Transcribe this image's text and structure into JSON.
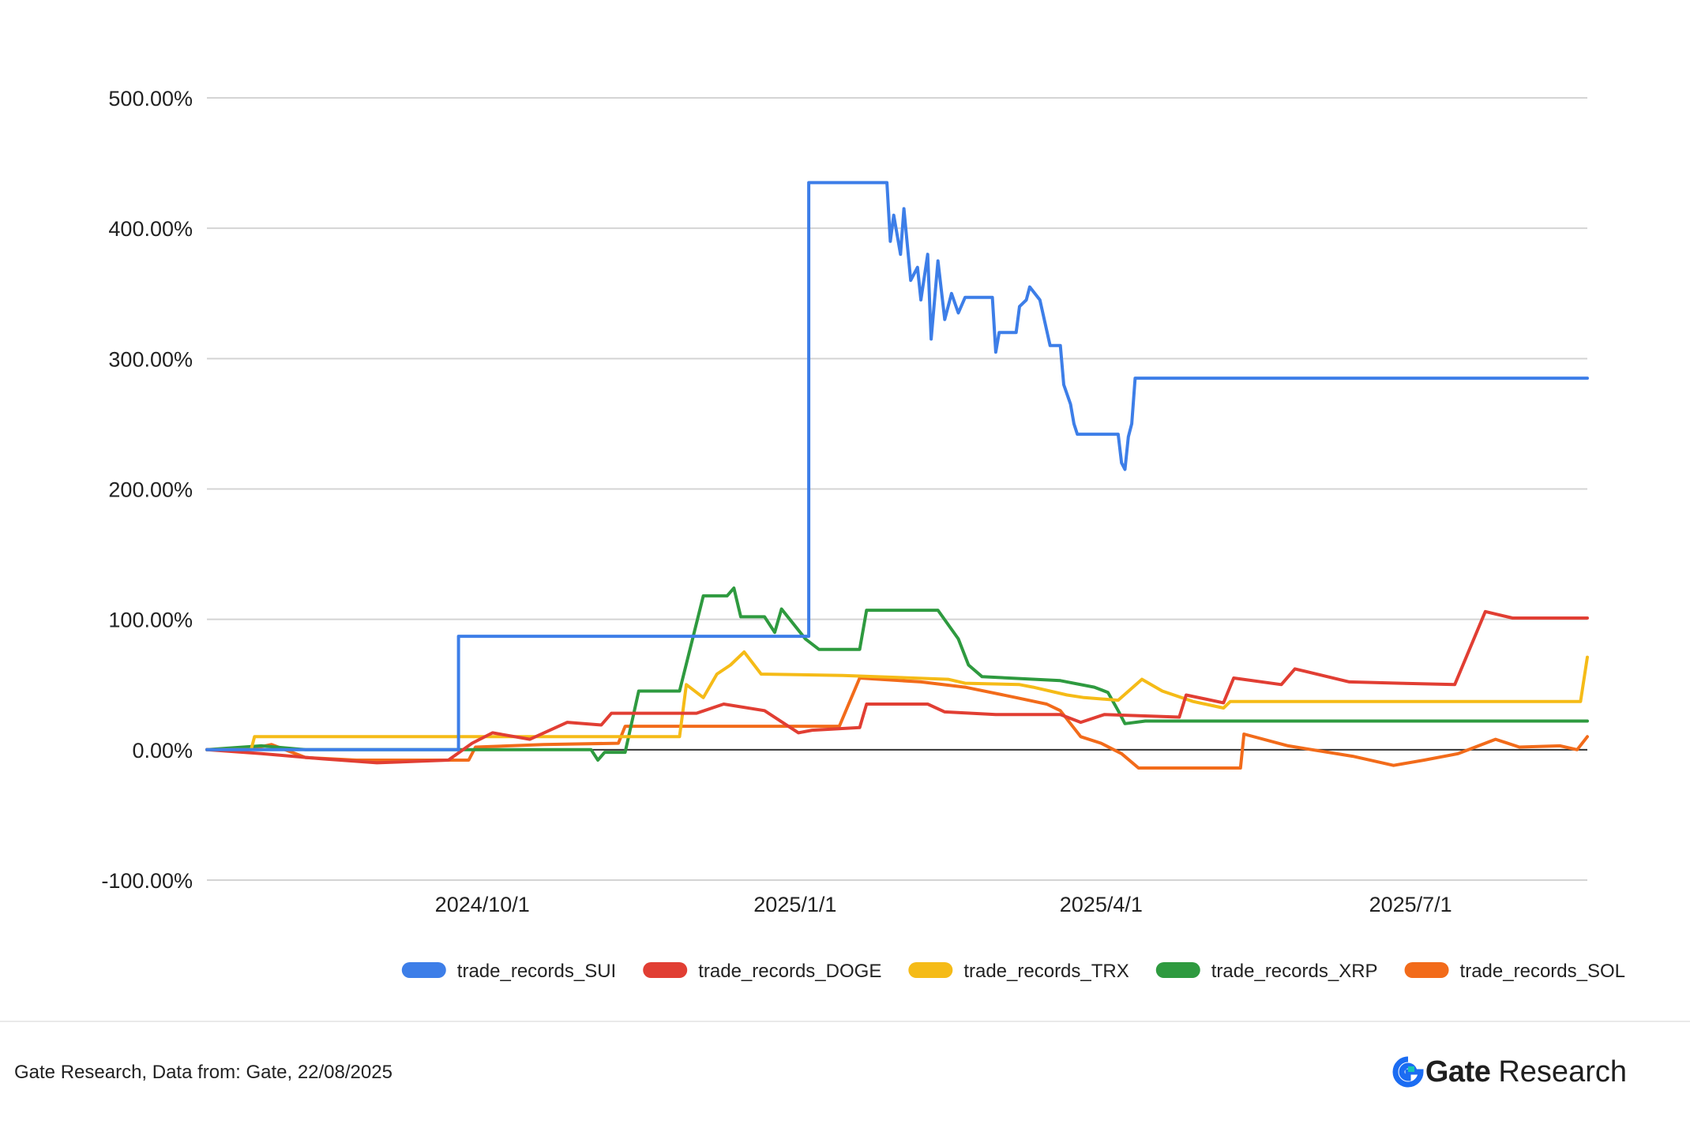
{
  "footer": {
    "source": "Gate Research, Data from: Gate, 22/08/2025",
    "brand_name": "Gate",
    "brand_suffix": "Research"
  },
  "chart_data": {
    "type": "line",
    "title": "",
    "xlabel": "",
    "ylabel": "",
    "ylim": [
      -100,
      500
    ],
    "xlim": [
      "2024-07-12",
      "2025-08-22"
    ],
    "yticks": [
      "500.00%",
      "400.00%",
      "300.00%",
      "200.00%",
      "100.00%",
      "0.00%",
      "-100.00%"
    ],
    "ytick_values": [
      500,
      400,
      300,
      200,
      100,
      0,
      -100
    ],
    "xticks": [
      "2024/10/1",
      "2025/1/1",
      "2025/4/1",
      "2025/7/1"
    ],
    "xtick_dates": [
      "2024-10-01",
      "2025-01-01",
      "2025-04-01",
      "2025-07-01"
    ],
    "grid": true,
    "legend": "bottom",
    "series": [
      {
        "name": "trade_records_SUI",
        "color": "#3d7ee8",
        "points": [
          [
            "2024-07-12",
            0
          ],
          [
            "2024-09-24",
            0
          ],
          [
            "2024-09-24",
            87
          ],
          [
            "2025-01-05",
            87
          ],
          [
            "2025-01-05",
            435
          ],
          [
            "2025-01-28",
            435
          ],
          [
            "2025-01-29",
            390
          ],
          [
            "2025-01-30",
            410
          ],
          [
            "2025-02-01",
            380
          ],
          [
            "2025-02-02",
            415
          ],
          [
            "2025-02-04",
            360
          ],
          [
            "2025-02-06",
            370
          ],
          [
            "2025-02-07",
            345
          ],
          [
            "2025-02-09",
            380
          ],
          [
            "2025-02-10",
            315
          ],
          [
            "2025-02-12",
            375
          ],
          [
            "2025-02-14",
            330
          ],
          [
            "2025-02-16",
            350
          ],
          [
            "2025-02-18",
            335
          ],
          [
            "2025-02-20",
            347
          ],
          [
            "2025-02-28",
            347
          ],
          [
            "2025-03-01",
            305
          ],
          [
            "2025-03-02",
            320
          ],
          [
            "2025-03-07",
            320
          ],
          [
            "2025-03-08",
            340
          ],
          [
            "2025-03-10",
            345
          ],
          [
            "2025-03-11",
            355
          ],
          [
            "2025-03-14",
            345
          ],
          [
            "2025-03-17",
            310
          ],
          [
            "2025-03-18",
            310
          ],
          [
            "2025-03-20",
            310
          ],
          [
            "2025-03-21",
            280
          ],
          [
            "2025-03-23",
            265
          ],
          [
            "2025-03-24",
            250
          ],
          [
            "2025-03-25",
            242
          ],
          [
            "2025-04-06",
            242
          ],
          [
            "2025-04-07",
            220
          ],
          [
            "2025-04-08",
            215
          ],
          [
            "2025-04-09",
            240
          ],
          [
            "2025-04-10",
            250
          ],
          [
            "2025-04-11",
            285
          ],
          [
            "2025-08-22",
            285
          ]
        ]
      },
      {
        "name": "trade_records_DOGE",
        "color": "#e13e33",
        "points": [
          [
            "2024-07-12",
            0
          ],
          [
            "2024-07-28",
            -3
          ],
          [
            "2024-08-15",
            -7
          ],
          [
            "2024-08-31",
            -10
          ],
          [
            "2024-09-21",
            -8
          ],
          [
            "2024-09-28",
            5
          ],
          [
            "2024-10-04",
            13
          ],
          [
            "2024-10-15",
            8
          ],
          [
            "2024-10-26",
            21
          ],
          [
            "2024-11-05",
            19
          ],
          [
            "2024-11-08",
            28
          ],
          [
            "2024-12-03",
            28
          ],
          [
            "2024-12-11",
            35
          ],
          [
            "2024-12-23",
            30
          ],
          [
            "2025-01-02",
            13
          ],
          [
            "2025-01-06",
            15
          ],
          [
            "2025-01-20",
            17
          ],
          [
            "2025-01-22",
            35
          ],
          [
            "2025-02-09",
            35
          ],
          [
            "2025-02-14",
            29
          ],
          [
            "2025-03-01",
            27
          ],
          [
            "2025-03-20",
            27
          ],
          [
            "2025-03-26",
            21
          ],
          [
            "2025-04-02",
            27
          ],
          [
            "2025-04-24",
            25
          ],
          [
            "2025-04-26",
            42
          ],
          [
            "2025-05-07",
            36
          ],
          [
            "2025-05-10",
            55
          ],
          [
            "2025-05-24",
            50
          ],
          [
            "2025-05-28",
            62
          ],
          [
            "2025-06-13",
            52
          ],
          [
            "2025-06-28",
            51
          ],
          [
            "2025-07-14",
            50
          ],
          [
            "2025-07-23",
            106
          ],
          [
            "2025-07-31",
            101
          ],
          [
            "2025-08-22",
            101
          ]
        ]
      },
      {
        "name": "trade_records_TRX",
        "color": "#f5bb17",
        "points": [
          [
            "2024-07-12",
            0
          ],
          [
            "2024-07-25",
            0
          ],
          [
            "2024-07-26",
            10
          ],
          [
            "2024-09-12",
            10
          ],
          [
            "2024-11-01",
            10
          ],
          [
            "2024-11-28",
            10
          ],
          [
            "2024-11-30",
            50
          ],
          [
            "2024-12-05",
            40
          ],
          [
            "2024-12-09",
            58
          ],
          [
            "2024-12-13",
            65
          ],
          [
            "2024-12-17",
            75
          ],
          [
            "2024-12-22",
            58
          ],
          [
            "2025-01-15",
            57
          ],
          [
            "2025-02-15",
            54
          ],
          [
            "2025-02-20",
            51
          ],
          [
            "2025-03-08",
            50
          ],
          [
            "2025-03-12",
            48
          ],
          [
            "2025-03-22",
            42
          ],
          [
            "2025-03-27",
            40
          ],
          [
            "2025-04-06",
            38
          ],
          [
            "2025-04-13",
            54
          ],
          [
            "2025-04-19",
            45
          ],
          [
            "2025-04-28",
            37
          ],
          [
            "2025-05-07",
            32
          ],
          [
            "2025-05-09",
            37
          ],
          [
            "2025-08-20",
            37
          ],
          [
            "2025-08-22",
            71
          ]
        ]
      },
      {
        "name": "trade_records_XRP",
        "color": "#2e9a3f",
        "points": [
          [
            "2024-07-12",
            0
          ],
          [
            "2024-07-28",
            3
          ],
          [
            "2024-08-10",
            0
          ],
          [
            "2024-10-23",
            0
          ],
          [
            "2024-11-02",
            0
          ],
          [
            "2024-11-04",
            -8
          ],
          [
            "2024-11-06",
            -2
          ],
          [
            "2024-11-12",
            -2
          ],
          [
            "2024-11-16",
            45
          ],
          [
            "2024-11-28",
            45
          ],
          [
            "2024-12-05",
            118
          ],
          [
            "2024-12-12",
            118
          ],
          [
            "2024-12-14",
            124
          ],
          [
            "2024-12-16",
            102
          ],
          [
            "2024-12-23",
            102
          ],
          [
            "2024-12-26",
            90
          ],
          [
            "2024-12-28",
            108
          ],
          [
            "2025-01-04",
            85
          ],
          [
            "2025-01-08",
            77
          ],
          [
            "2025-01-20",
            77
          ],
          [
            "2025-01-22",
            107
          ],
          [
            "2025-02-12",
            107
          ],
          [
            "2025-02-18",
            85
          ],
          [
            "2025-02-21",
            65
          ],
          [
            "2025-02-25",
            56
          ],
          [
            "2025-03-20",
            53
          ],
          [
            "2025-03-30",
            48
          ],
          [
            "2025-04-03",
            44
          ],
          [
            "2025-04-06",
            30
          ],
          [
            "2025-04-08",
            20
          ],
          [
            "2025-04-14",
            22
          ],
          [
            "2025-08-22",
            22
          ]
        ]
      },
      {
        "name": "trade_records_SOL",
        "color": "#f26b1a",
        "points": [
          [
            "2024-07-12",
            0
          ],
          [
            "2024-07-24",
            0
          ],
          [
            "2024-07-31",
            4
          ],
          [
            "2024-08-10",
            -6
          ],
          [
            "2024-08-25",
            -8
          ],
          [
            "2024-09-10",
            -8
          ],
          [
            "2024-09-27",
            -8
          ],
          [
            "2024-09-29",
            2
          ],
          [
            "2024-10-19",
            4
          ],
          [
            "2024-11-10",
            5
          ],
          [
            "2024-11-12",
            18
          ],
          [
            "2024-12-25",
            18
          ],
          [
            "2025-01-14",
            18
          ],
          [
            "2025-01-20",
            55
          ],
          [
            "2025-02-07",
            52
          ],
          [
            "2025-02-20",
            48
          ],
          [
            "2025-03-07",
            40
          ],
          [
            "2025-03-16",
            35
          ],
          [
            "2025-03-20",
            30
          ],
          [
            "2025-03-26",
            10
          ],
          [
            "2025-04-01",
            5
          ],
          [
            "2025-04-07",
            -3
          ],
          [
            "2025-04-12",
            -14
          ],
          [
            "2025-05-12",
            -14
          ],
          [
            "2025-05-13",
            12
          ],
          [
            "2025-05-26",
            3
          ],
          [
            "2025-06-14",
            -5
          ],
          [
            "2025-06-26",
            -12
          ],
          [
            "2025-07-05",
            -8
          ],
          [
            "2025-07-15",
            -3
          ],
          [
            "2025-07-26",
            8
          ],
          [
            "2025-08-02",
            2
          ],
          [
            "2025-08-14",
            3
          ],
          [
            "2025-08-19",
            0
          ],
          [
            "2025-08-22",
            10
          ]
        ]
      }
    ]
  }
}
